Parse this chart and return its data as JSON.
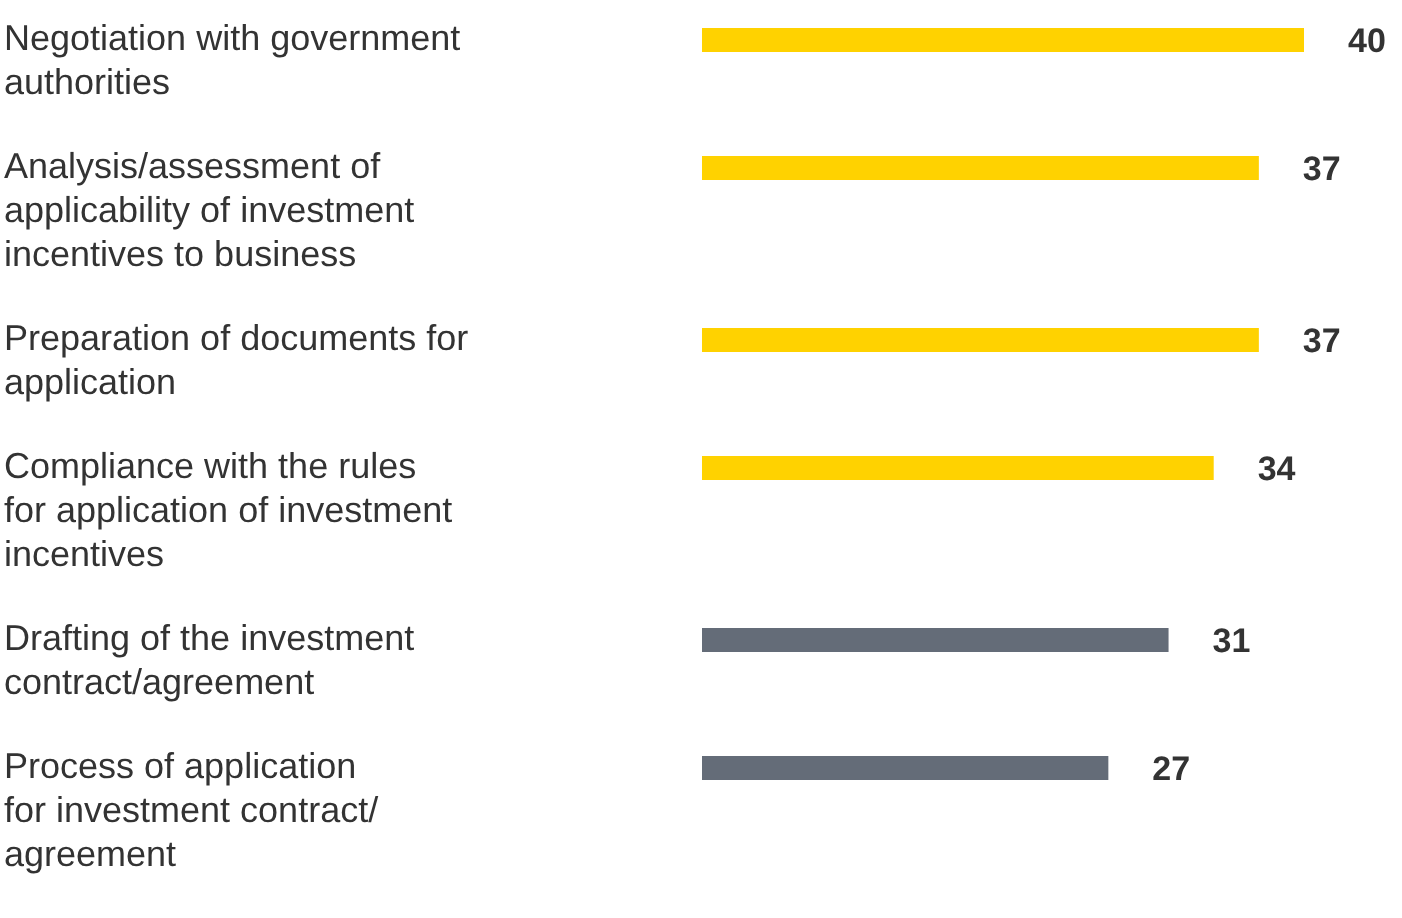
{
  "chart_data": {
    "type": "bar",
    "orientation": "horizontal",
    "relative": false,
    "data_labels": true,
    "categories": [
      "Negotiation with government\nauthorities",
      "Analysis/assessment of\napplicability of investment\nincentives to business",
      "Preparation of documents for\napplication",
      "Compliance with the rules\nfor application of investment\nincentives",
      "Drafting of the investment\ncontract/agreement",
      "Process of application\nfor investment contract/\nagreement"
    ],
    "values": [
      40,
      37,
      37,
      34,
      31,
      27
    ],
    "colors": [
      "#ffd200",
      "#ffd200",
      "#ffd200",
      "#ffd200",
      "#646c78",
      "#646c78"
    ]
  }
}
